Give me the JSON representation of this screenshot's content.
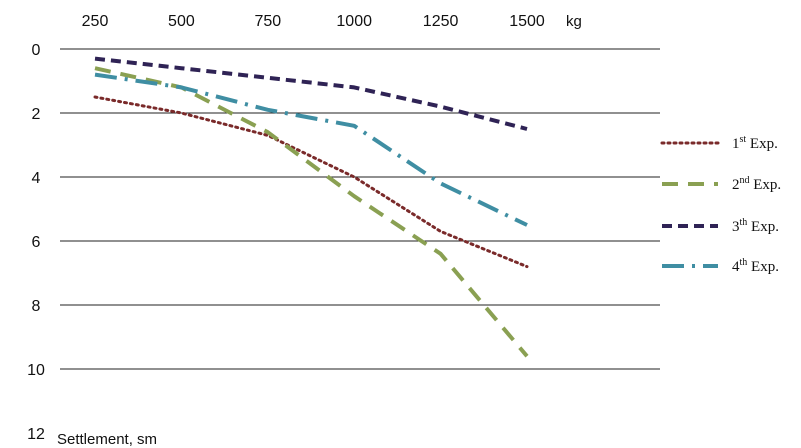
{
  "chart_data": {
    "type": "line",
    "xlabel": "kg",
    "ylabel": "Settlement, sm",
    "x_ticks": [
      250,
      500,
      750,
      1000,
      1250,
      1500
    ],
    "y_ticks": [
      0,
      2,
      4,
      6,
      8,
      10,
      12
    ],
    "xlim": [
      250,
      1500
    ],
    "ylim": [
      0,
      12
    ],
    "y_inverted": true,
    "x_axis_position": "top",
    "grid": "horizontal",
    "legend_position": "right",
    "x": [
      250,
      500,
      750,
      1000,
      1250,
      1500
    ],
    "series": [
      {
        "name": "1st Exp.",
        "label_main": "1",
        "label_sup": "st",
        "label_rest": " Exp.",
        "color": "#7a2a2a",
        "style": "dotted",
        "values": [
          1.5,
          2.0,
          2.7,
          4.0,
          5.7,
          6.8
        ]
      },
      {
        "name": "2nd Exp.",
        "label_main": "2",
        "label_sup": "nd",
        "label_rest": " Exp.",
        "color": "#8aa052",
        "style": "dashed",
        "values": [
          0.6,
          1.2,
          2.6,
          4.6,
          6.4,
          9.6
        ]
      },
      {
        "name": "3th Exp.",
        "label_main": "3",
        "label_sup": "th",
        "label_rest": " Exp.",
        "color": "#2f2355",
        "style": "dashed-short",
        "values": [
          0.3,
          0.6,
          0.9,
          1.2,
          1.8,
          2.5
        ]
      },
      {
        "name": "4th Exp.",
        "label_main": "4",
        "label_sup": "th",
        "label_rest": " Exp.",
        "color": "#3f8ea3",
        "style": "dash-dot",
        "values": [
          0.8,
          1.2,
          1.9,
          2.4,
          4.2,
          5.5
        ]
      }
    ]
  }
}
